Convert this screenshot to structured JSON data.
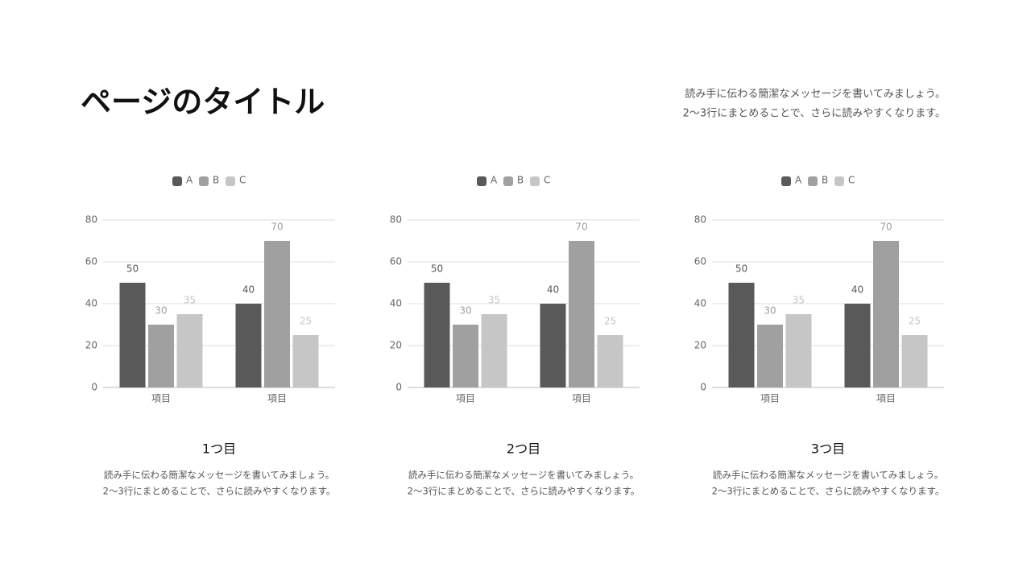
{
  "title": "ページのタイトル",
  "description": [
    "読み手に伝わる簡潔なメッセージを書いてみましょう。",
    "2〜3行にまとめることで、さらに読みやすくなります。"
  ],
  "chart_data": [
    {
      "type": "bar",
      "title": "1つ目",
      "description": [
        "読み手に伝わる簡潔なメッセージを書いてみましょう。",
        "2〜3行にまとめることで、さらに読みやすくなります。"
      ],
      "categories": [
        "項目",
        "項目"
      ],
      "series": [
        {
          "name": "A",
          "color": "#595959",
          "values": [
            50,
            40
          ]
        },
        {
          "name": "B",
          "color": "#a0a0a0",
          "values": [
            30,
            70
          ]
        },
        {
          "name": "C",
          "color": "#c6c6c6",
          "values": [
            35,
            25
          ]
        }
      ],
      "ylim": [
        0,
        80
      ],
      "yticks": [
        0,
        20,
        40,
        60,
        80
      ],
      "grid": true,
      "legend": "top"
    },
    {
      "type": "bar",
      "title": "2つ目",
      "description": [
        "読み手に伝わる簡潔なメッセージを書いてみましょう。",
        "2〜3行にまとめることで、さらに読みやすくなります。"
      ],
      "categories": [
        "項目",
        "項目"
      ],
      "series": [
        {
          "name": "A",
          "color": "#595959",
          "values": [
            50,
            40
          ]
        },
        {
          "name": "B",
          "color": "#a0a0a0",
          "values": [
            30,
            70
          ]
        },
        {
          "name": "C",
          "color": "#c6c6c6",
          "values": [
            35,
            25
          ]
        }
      ],
      "ylim": [
        0,
        80
      ],
      "yticks": [
        0,
        20,
        40,
        60,
        80
      ],
      "grid": true,
      "legend": "top"
    },
    {
      "type": "bar",
      "title": "3つ目",
      "description": [
        "読み手に伝わる簡潔なメッセージを書いてみましょう。",
        "2〜3行にまとめることで、さらに読みやすくなります。"
      ],
      "categories": [
        "項目",
        "項目"
      ],
      "series": [
        {
          "name": "A",
          "color": "#595959",
          "values": [
            50,
            40
          ]
        },
        {
          "name": "B",
          "color": "#a0a0a0",
          "values": [
            30,
            70
          ]
        },
        {
          "name": "C",
          "color": "#c6c6c6",
          "values": [
            35,
            25
          ]
        }
      ],
      "ylim": [
        0,
        80
      ],
      "yticks": [
        0,
        20,
        40,
        60,
        80
      ],
      "grid": true,
      "legend": "top"
    }
  ]
}
